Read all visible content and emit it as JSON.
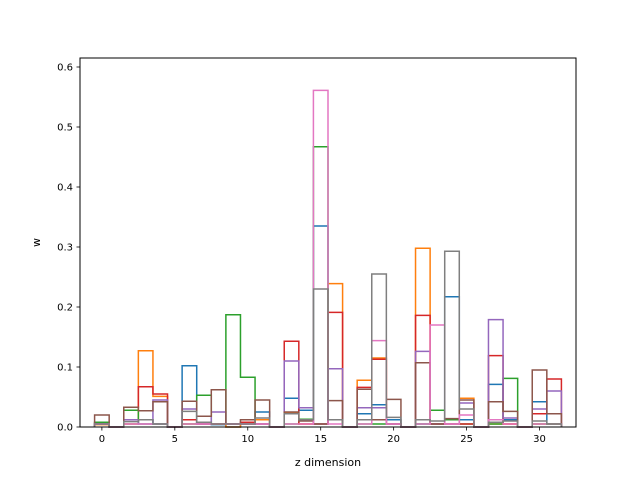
{
  "chart_data": {
    "type": "step-histogram",
    "title": "",
    "xlabel": "z dimension",
    "ylabel": "w",
    "xlim": [
      -1.5,
      32.5
    ],
    "ylim": [
      0,
      0.615
    ],
    "x_ticks": [
      0,
      5,
      10,
      15,
      20,
      25,
      30
    ],
    "y_ticks": [
      0.0,
      0.1,
      0.2,
      0.3,
      0.4,
      0.5,
      0.6
    ],
    "x_tick_labels": [
      "0",
      "5",
      "10",
      "15",
      "20",
      "25",
      "30"
    ],
    "y_tick_labels": [
      "0.0",
      "0.1",
      "0.2",
      "0.3",
      "0.4",
      "0.5",
      "0.6"
    ],
    "grid": false,
    "legend": "none",
    "x": [
      0,
      1,
      2,
      3,
      4,
      5,
      6,
      7,
      8,
      9,
      10,
      11,
      12,
      13,
      14,
      15,
      16,
      17,
      18,
      19,
      20,
      21,
      22,
      23,
      24,
      25,
      26,
      27,
      28,
      29,
      30,
      31
    ],
    "series": [
      {
        "color": "#1f77b4",
        "values": [
          0.006,
          0.0,
          0.005,
          0.012,
          0.005,
          0.0,
          0.102,
          0.005,
          0.004,
          0.0,
          0.005,
          0.025,
          0.0,
          0.048,
          0.028,
          0.335,
          0.012,
          0.0,
          0.022,
          0.037,
          0.012,
          0.0,
          0.005,
          0.005,
          0.217,
          0.012,
          0.0,
          0.071,
          0.012,
          0.0,
          0.042,
          0.005
        ]
      },
      {
        "color": "#ff7f0e",
        "values": [
          0.004,
          0.0,
          0.005,
          0.127,
          0.051,
          0.0,
          0.005,
          0.005,
          0.005,
          0.0,
          0.005,
          0.012,
          0.0,
          0.023,
          0.005,
          0.005,
          0.239,
          0.0,
          0.078,
          0.115,
          0.005,
          0.0,
          0.298,
          0.005,
          0.005,
          0.048,
          0.0,
          0.005,
          0.005,
          0.0,
          0.005,
          0.005
        ]
      },
      {
        "color": "#2ca02c",
        "values": [
          0.008,
          0.0,
          0.028,
          0.005,
          0.005,
          0.0,
          0.005,
          0.053,
          0.005,
          0.187,
          0.083,
          0.005,
          0.0,
          0.005,
          0.013,
          0.467,
          0.012,
          0.0,
          0.005,
          0.005,
          0.005,
          0.0,
          0.005,
          0.028,
          0.012,
          0.005,
          0.0,
          0.005,
          0.081,
          0.0,
          0.005,
          0.005
        ]
      },
      {
        "color": "#d62728",
        "values": [
          0.005,
          0.0,
          0.033,
          0.067,
          0.055,
          0.0,
          0.012,
          0.005,
          0.005,
          0.005,
          0.008,
          0.005,
          0.0,
          0.143,
          0.005,
          0.005,
          0.191,
          0.0,
          0.066,
          0.113,
          0.005,
          0.0,
          0.186,
          0.005,
          0.005,
          0.005,
          0.0,
          0.119,
          0.005,
          0.0,
          0.022,
          0.08
        ]
      },
      {
        "color": "#9467bd",
        "values": [
          0.005,
          0.0,
          0.012,
          0.005,
          0.045,
          0.0,
          0.03,
          0.005,
          0.025,
          0.005,
          0.005,
          0.005,
          0.0,
          0.11,
          0.032,
          0.005,
          0.097,
          0.0,
          0.032,
          0.032,
          0.005,
          0.0,
          0.126,
          0.005,
          0.005,
          0.04,
          0.0,
          0.179,
          0.015,
          0.0,
          0.03,
          0.06
        ]
      },
      {
        "color": "#8c564b",
        "values": [
          0.02,
          0.0,
          0.033,
          0.027,
          0.042,
          0.0,
          0.043,
          0.018,
          0.062,
          0.005,
          0.012,
          0.045,
          0.0,
          0.025,
          0.01,
          0.005,
          0.044,
          0.0,
          0.063,
          0.012,
          0.046,
          0.0,
          0.107,
          0.005,
          0.014,
          0.045,
          0.0,
          0.042,
          0.026,
          0.0,
          0.095,
          0.022
        ]
      },
      {
        "color": "#e377c2",
        "values": [
          0.005,
          0.0,
          0.005,
          0.005,
          0.005,
          0.0,
          0.005,
          0.005,
          0.005,
          0.005,
          0.005,
          0.005,
          0.0,
          0.005,
          0.005,
          0.561,
          0.005,
          0.0,
          0.005,
          0.144,
          0.005,
          0.0,
          0.005,
          0.17,
          0.005,
          0.02,
          0.0,
          0.012,
          0.005,
          0.0,
          0.005,
          0.005
        ]
      },
      {
        "color": "#7f7f7f",
        "values": [
          0.005,
          0.0,
          0.009,
          0.012,
          0.005,
          0.0,
          0.026,
          0.008,
          0.005,
          0.005,
          0.005,
          0.015,
          0.0,
          0.022,
          0.012,
          0.23,
          0.012,
          0.0,
          0.012,
          0.255,
          0.016,
          0.0,
          0.012,
          0.01,
          0.293,
          0.03,
          0.0,
          0.008,
          0.01,
          0.0,
          0.01,
          0.005
        ]
      }
    ]
  }
}
